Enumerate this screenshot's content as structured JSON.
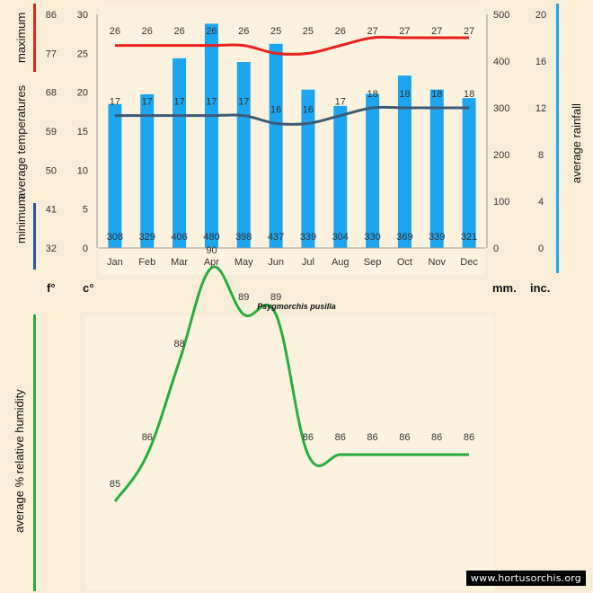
{
  "colors": {
    "rain_bar": "#1ea5ef",
    "max_line": "#e8221c",
    "min_line": "#3d5a72",
    "humidity_line": "#27ae3c",
    "max_bar": "#e8221c",
    "min_bar": "#2a55a0",
    "rain_axis_bar": "#1ea5ef",
    "humidity_axis_bar": "#27ae3c"
  },
  "labels": {
    "maximum": "maximum",
    "average_temperatures": "average  temperatures",
    "minimum": "minimum",
    "average_rainfall": "average  rainfall",
    "humidity_title": "average %  relative humidity",
    "unit_f": "f°",
    "unit_c": "c°",
    "unit_mm": "mm.",
    "unit_inc": "inc.",
    "species": "Psygmorchis pusilla",
    "watermark": "www.hortusorchis.org"
  },
  "chart_data": [
    {
      "type": "bar",
      "title": "Psygmorchis pusilla",
      "categories": [
        "Jan",
        "Feb",
        "Mar",
        "Apr",
        "May",
        "Jun",
        "Jul",
        "Aug",
        "Sep",
        "Oct",
        "Nov",
        "Dec"
      ],
      "series": [
        {
          "name": "average rainfall (mm)",
          "type": "bar",
          "axis": "mm",
          "values": [
            308,
            329,
            406,
            480,
            398,
            437,
            339,
            304,
            330,
            369,
            339,
            321
          ]
        },
        {
          "name": "maximum temperature (°C)",
          "type": "line",
          "axis": "c",
          "values": [
            26,
            26,
            26,
            26,
            26,
            25,
            25,
            26,
            27,
            27,
            27,
            27
          ]
        },
        {
          "name": "minimum temperature (°C)",
          "type": "line",
          "axis": "c",
          "values": [
            17,
            17,
            17,
            17,
            17,
            16,
            16,
            17,
            18,
            18,
            18,
            18
          ]
        }
      ],
      "axes": {
        "f": {
          "ticks": [
            32,
            41,
            50,
            59,
            68,
            77,
            86
          ]
        },
        "c": {
          "ticks": [
            0,
            5,
            10,
            15,
            20,
            25,
            30
          ],
          "ylim": [
            0,
            30
          ]
        },
        "mm": {
          "ticks": [
            0,
            100,
            200,
            300,
            400,
            500
          ],
          "ylim": [
            0,
            500
          ]
        },
        "inc": {
          "ticks": [
            0,
            4,
            8,
            12,
            16,
            20
          ]
        }
      }
    },
    {
      "type": "line",
      "title": "average %  relative humidity",
      "categories": [
        "Jan",
        "Feb",
        "Mar",
        "Apr",
        "May",
        "Jun",
        "Jul",
        "Aug",
        "Sep",
        "Oct",
        "Nov",
        "Dec"
      ],
      "values": [
        85,
        86,
        88,
        90,
        89,
        89,
        86,
        86,
        86,
        86,
        86,
        86
      ]
    }
  ]
}
